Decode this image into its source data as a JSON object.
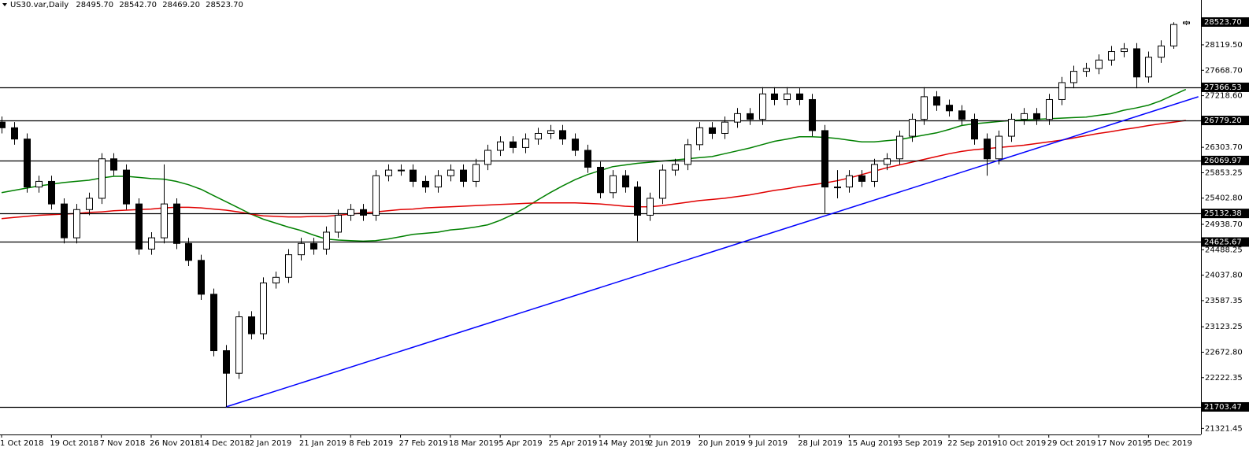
{
  "chart_data": {
    "type": "candlestick",
    "header": {
      "symbol": "US30.var,Daily",
      "ohlc": [
        "28495.70",
        "28542.70",
        "28469.20",
        "28523.70"
      ]
    },
    "categories": [
      "1 Oct 2018",
      null,
      null,
      null,
      "19 Oct 2018",
      null,
      null,
      null,
      "7 Nov 2018",
      null,
      null,
      null,
      "26 Nov 2018",
      null,
      null,
      null,
      "14 Dec 2018",
      null,
      null,
      null,
      "2 Jan 2019",
      null,
      null,
      null,
      "21 Jan 2019",
      null,
      null,
      null,
      "8 Feb 2019",
      null,
      null,
      null,
      "27 Feb 2019",
      null,
      null,
      null,
      "18 Mar 2019",
      null,
      null,
      null,
      "5 Apr 2019",
      null,
      null,
      null,
      "25 Apr 2019",
      null,
      null,
      null,
      "14 May 2019",
      null,
      null,
      null,
      "2 Jun 2019",
      null,
      null,
      null,
      "20 Jun 2019",
      null,
      null,
      null,
      "9 Jul 2019",
      null,
      null,
      null,
      "28 Jul 2019",
      null,
      null,
      null,
      "15 Aug 2019",
      null,
      null,
      null,
      "3 Sep 2019",
      null,
      null,
      null,
      "22 Sep 2019",
      null,
      null,
      null,
      "10 Oct 2019",
      null,
      null,
      null,
      "29 Oct 2019",
      null,
      null,
      null,
      "17 Nov 2019",
      null,
      null,
      null,
      "5 Dec 2019",
      null,
      null,
      null
    ],
    "open": [
      26750,
      26650,
      26450,
      25600,
      25700,
      25300,
      24700,
      25200,
      25400,
      26100,
      25900,
      25300,
      24500,
      24700,
      25300,
      24600,
      24300,
      23700,
      22700,
      22300,
      23300,
      23000,
      23900,
      24000,
      24400,
      24600,
      24500,
      24800,
      25100,
      25200,
      25100,
      25800,
      25900,
      25900,
      25700,
      25600,
      25800,
      25900,
      25700,
      26000,
      26250,
      26400,
      26300,
      26450,
      26550,
      26600,
      26450,
      26250,
      25950,
      25500,
      25800,
      25600,
      25100,
      25400,
      25900,
      26000,
      26350,
      26650,
      26550,
      26750,
      26900,
      26800,
      27250,
      27150,
      27250,
      27150,
      26600,
      25600,
      25600,
      25800,
      25700,
      26000,
      26100,
      26500,
      26800,
      27200,
      27050,
      26950,
      26800,
      26450,
      26100,
      26500,
      26800,
      26900,
      26800,
      27150,
      27450,
      27650,
      27700,
      27850,
      28000,
      28050,
      27550,
      27900,
      28100,
      28495.7
    ],
    "high": [
      26850,
      26750,
      26550,
      25800,
      25800,
      25400,
      25300,
      25500,
      26200,
      26200,
      26000,
      25400,
      24800,
      26000,
      25400,
      24700,
      24400,
      23800,
      22800,
      23400,
      23400,
      24000,
      24100,
      24500,
      24700,
      24700,
      24900,
      25200,
      25300,
      25300,
      25900,
      26000,
      26000,
      26000,
      25800,
      25900,
      26000,
      26000,
      26100,
      26350,
      26500,
      26500,
      26550,
      26650,
      26700,
      26700,
      26550,
      26350,
      26050,
      25900,
      25900,
      25700,
      25500,
      26000,
      26100,
      26450,
      26750,
      26750,
      26850,
      27000,
      27000,
      27370,
      27370,
      27370,
      27350,
      27250,
      26700,
      25900,
      25900,
      25900,
      26100,
      26200,
      26600,
      26900,
      27370,
      27300,
      27150,
      27050,
      26900,
      26550,
      26600,
      26900,
      27000,
      27000,
      27250,
      27550,
      27750,
      27800,
      27950,
      28100,
      28150,
      28150,
      28000,
      28200,
      28520,
      28542.7
    ],
    "low": [
      26550,
      26350,
      25500,
      25500,
      25200,
      24600,
      24600,
      25100,
      25300,
      25800,
      25200,
      24400,
      24400,
      24600,
      24500,
      24200,
      23600,
      22600,
      21703.47,
      22200,
      22900,
      22900,
      23800,
      23900,
      24300,
      24400,
      24400,
      24700,
      25000,
      25000,
      25000,
      25700,
      25800,
      25600,
      25500,
      25500,
      25700,
      25600,
      25600,
      25900,
      26150,
      26200,
      26200,
      26350,
      26450,
      26350,
      26150,
      25850,
      25400,
      25400,
      25500,
      24640,
      25000,
      25300,
      25800,
      25900,
      26250,
      26450,
      26450,
      26650,
      26700,
      26700,
      27050,
      27050,
      27050,
      26500,
      25140,
      25400,
      25500,
      25600,
      25600,
      25900,
      26000,
      26400,
      26700,
      26950,
      26850,
      26700,
      26350,
      25800,
      26000,
      26400,
      26700,
      26700,
      26700,
      27050,
      27350,
      27550,
      27600,
      27750,
      27900,
      27350,
      27450,
      27800,
      28050,
      28469.2
    ],
    "close": [
      26650,
      26450,
      25600,
      25700,
      25300,
      24700,
      25200,
      25400,
      26100,
      25900,
      25300,
      24500,
      24700,
      25300,
      24600,
      24300,
      23700,
      22700,
      22300,
      23300,
      23000,
      23900,
      24000,
      24400,
      24600,
      24500,
      24800,
      25100,
      25200,
      25100,
      25800,
      25900,
      25900,
      25700,
      25600,
      25800,
      25900,
      25700,
      26000,
      26250,
      26400,
      26300,
      26450,
      26550,
      26600,
      26450,
      26250,
      25950,
      25500,
      25800,
      25600,
      25100,
      25400,
      25900,
      26000,
      26350,
      26650,
      26550,
      26750,
      26900,
      26800,
      27250,
      27150,
      27250,
      27150,
      26600,
      25600,
      25600,
      25800,
      25700,
      26000,
      26100,
      26500,
      26800,
      27200,
      27050,
      26950,
      26800,
      26450,
      26100,
      26500,
      26800,
      26900,
      26800,
      27150,
      27450,
      27650,
      27700,
      27850,
      28000,
      28050,
      27550,
      27900,
      28100,
      28480,
      28523.7
    ],
    "up_color": "#ffffff",
    "down_color": "#000000",
    "outline_color": "#000000",
    "series": [
      {
        "color": "#008000",
        "values": [
          25500,
          25540,
          25580,
          25620,
          25650,
          25680,
          25700,
          25720,
          25760,
          25790,
          25790,
          25770,
          25750,
          25740,
          25700,
          25640,
          25560,
          25450,
          25340,
          25230,
          25120,
          25030,
          24960,
          24890,
          24830,
          24750,
          24680,
          24660,
          24650,
          24640,
          24650,
          24680,
          24720,
          24760,
          24780,
          24800,
          24840,
          24860,
          24890,
          24930,
          25010,
          25110,
          25230,
          25370,
          25500,
          25620,
          25730,
          25820,
          25890,
          25960,
          25990,
          26020,
          26040,
          26060,
          26080,
          26100,
          26120,
          26140,
          26190,
          26240,
          26290,
          26350,
          26410,
          26450,
          26490,
          26490,
          26480,
          26460,
          26430,
          26400,
          26400,
          26420,
          26440,
          26480,
          26520,
          26560,
          26620,
          26690,
          26720,
          26740,
          26760,
          26780,
          26790,
          26800,
          26810,
          26820,
          26830,
          26840,
          26870,
          26900,
          26960,
          27000,
          27050,
          27130,
          27230,
          27330
        ]
      },
      {
        "color": "#e00000",
        "values": [
          25040,
          25060,
          25080,
          25100,
          25110,
          25120,
          25130,
          25150,
          25160,
          25180,
          25190,
          25200,
          25210,
          25230,
          25240,
          25240,
          25230,
          25210,
          25190,
          25160,
          25120,
          25090,
          25080,
          25070,
          25070,
          25080,
          25080,
          25100,
          25120,
          25140,
          25160,
          25180,
          25200,
          25210,
          25230,
          25240,
          25250,
          25260,
          25270,
          25280,
          25290,
          25300,
          25310,
          25320,
          25320,
          25320,
          25320,
          25310,
          25300,
          25280,
          25260,
          25250,
          25250,
          25270,
          25300,
          25330,
          25360,
          25380,
          25400,
          25430,
          25460,
          25500,
          25540,
          25570,
          25610,
          25640,
          25670,
          25710,
          25760,
          25820,
          25880,
          25940,
          25990,
          26040,
          26090,
          26140,
          26190,
          26230,
          26260,
          26280,
          26300,
          26320,
          26340,
          26370,
          26400,
          26430,
          26470,
          26510,
          26550,
          26580,
          26620,
          26650,
          26690,
          26720,
          26750,
          26780
        ]
      }
    ],
    "trendline": {
      "color": "#0000ff",
      "x": [
        18,
        96
      ],
      "values": [
        21703.47,
        27200
      ]
    },
    "hlines": [
      {
        "value": 27366.53,
        "label": "27366.53"
      },
      {
        "value": 26779.2,
        "label": "26779.20"
      },
      {
        "value": 26069.97,
        "label": "26069.97"
      },
      {
        "value": 25132.38,
        "label": "25132.38"
      },
      {
        "value": 24625.67,
        "label": "24625.67"
      },
      {
        "value": 21703.47,
        "label": "21703.47"
      }
    ],
    "hline_color": "#000000",
    "price_label": {
      "value": 28523.7,
      "label": "28523.70"
    },
    "ylim": [
      21215,
      28914
    ],
    "yticks": [
      {
        "value": 28119.5,
        "label": "28119.50"
      },
      {
        "value": 27668.7,
        "label": "27668.70"
      },
      {
        "value": 27218.6,
        "label": "27218.60"
      },
      {
        "value": 26303.7,
        "label": "26303.70"
      },
      {
        "value": 25853.25,
        "label": "25853.25"
      },
      {
        "value": 25402.8,
        "label": "25402.80"
      },
      {
        "value": 24938.7,
        "label": "24938.70"
      },
      {
        "value": 24488.25,
        "label": "24488.25"
      },
      {
        "value": 24037.8,
        "label": "24037.80"
      },
      {
        "value": 23587.35,
        "label": "23587.35"
      },
      {
        "value": 23123.25,
        "label": "23123.25"
      },
      {
        "value": 22672.8,
        "label": "22672.80"
      },
      {
        "value": 22222.35,
        "label": "22222.35"
      },
      {
        "value": 21321.45,
        "label": "21321.45"
      }
    ],
    "grid": false
  }
}
